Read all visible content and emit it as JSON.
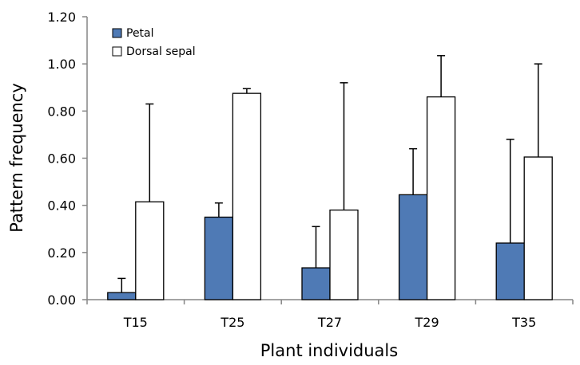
{
  "chart_data": {
    "type": "bar",
    "categories": [
      "T15",
      "T25",
      "T27",
      "T29",
      "T35"
    ],
    "series": [
      {
        "name": "Petal",
        "values": [
          0.03,
          0.35,
          0.135,
          0.445,
          0.24
        ],
        "error_upper": [
          0.09,
          0.41,
          0.31,
          0.64,
          0.68
        ],
        "color": "#4F7AB5"
      },
      {
        "name": "Dorsal sepal",
        "values": [
          0.415,
          0.875,
          0.38,
          0.86,
          0.605
        ],
        "error_upper": [
          0.83,
          0.895,
          0.92,
          1.035,
          1.0
        ],
        "color": "#FFFFFF"
      }
    ],
    "xlabel": "Plant individuals",
    "ylabel": "Pattern frequency",
    "ylim": [
      0,
      1.2
    ],
    "yticks": [
      "0.00",
      "0.20",
      "0.40",
      "0.60",
      "0.80",
      "1.00",
      "1.20"
    ],
    "grid": false,
    "legend_position": "top-left"
  }
}
